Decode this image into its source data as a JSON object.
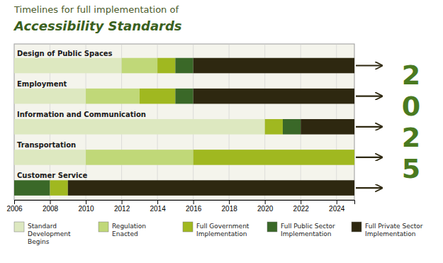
{
  "chart_data": {
    "type": "timeline",
    "title": "Timelines for full implementation of",
    "subtitle": "Accessibility Standards",
    "orientation": "horizontal",
    "annotation": "2025",
    "grid": true,
    "xlim": [
      2006,
      2025
    ],
    "xticks": [
      2006,
      2008,
      2010,
      2012,
      2014,
      2016,
      2018,
      2020,
      2022,
      2024
    ],
    "categories": [
      "Design of Public Spaces",
      "Employment",
      "Information and Communication",
      "Transportation",
      "Customer Service"
    ],
    "series": [
      {
        "name": "Standard\nDevelopment\nBegins",
        "color": "#dde8c0"
      },
      {
        "name": "Regulation\nEnacted",
        "color": "#c0d878"
      },
      {
        "name": "Full Government\nImplementation",
        "color": "#a0b820"
      },
      {
        "name": "Full Public Sector\nImplementation",
        "color": "#3a6828"
      },
      {
        "name": "Full Private Sector\nImplementation",
        "color": "#2e2810"
      }
    ],
    "segments": [
      [
        {
          "start": 2006,
          "end": 2012,
          "color": "#dde8c0"
        },
        {
          "start": 2012,
          "end": 2014,
          "color": "#c0d878"
        },
        {
          "start": 2014,
          "end": 2015,
          "color": "#a0b820"
        },
        {
          "start": 2015,
          "end": 2016,
          "color": "#3a6828"
        },
        {
          "start": 2016,
          "end": 2025,
          "color": "#2e2810"
        }
      ],
      [
        {
          "start": 2006,
          "end": 2010,
          "color": "#dde8c0"
        },
        {
          "start": 2010,
          "end": 2013,
          "color": "#c0d878"
        },
        {
          "start": 2013,
          "end": 2015,
          "color": "#a0b820"
        },
        {
          "start": 2015,
          "end": 2016,
          "color": "#3a6828"
        },
        {
          "start": 2016,
          "end": 2025,
          "color": "#2e2810"
        }
      ],
      [
        {
          "start": 2006,
          "end": 2020,
          "color": "#dde8c0"
        },
        {
          "start": 2020,
          "end": 2021,
          "color": "#a0b820"
        },
        {
          "start": 2021,
          "end": 2022,
          "color": "#3a6828"
        },
        {
          "start": 2022,
          "end": 2025,
          "color": "#2e2810"
        }
      ],
      [
        {
          "start": 2006,
          "end": 2010,
          "color": "#dde8c0"
        },
        {
          "start": 2010,
          "end": 2016,
          "color": "#c0d878"
        },
        {
          "start": 2016,
          "end": 2025,
          "color": "#a0b820"
        }
      ],
      [
        {
          "start": 2006,
          "end": 2008,
          "color": "#3a6828"
        },
        {
          "start": 2008,
          "end": 2009,
          "color": "#a0b820"
        },
        {
          "start": 2009,
          "end": 2025,
          "color": "#2e2810"
        }
      ]
    ]
  }
}
